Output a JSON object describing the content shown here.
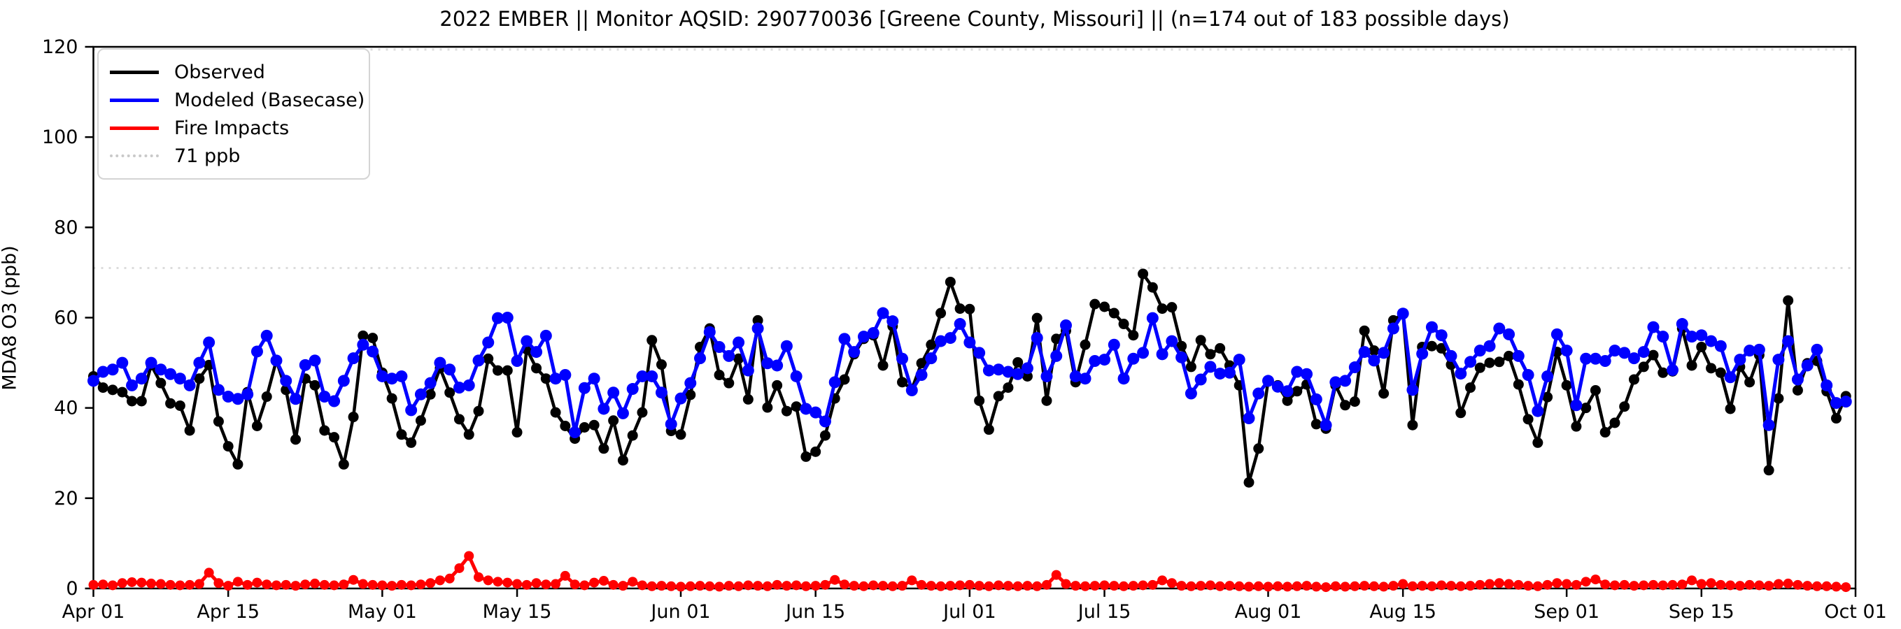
{
  "figure": {
    "title": "2022 EMBER || Monitor AQSID: 290770036 [Greene County, Missouri] || (n=174 out of 183 possible days)",
    "ylabel": "MDA8 O3 (ppb)",
    "background_color": "#ffffff",
    "frame_color": "#000000"
  },
  "legend": {
    "items": [
      {
        "label": "Observed",
        "color": "#000000",
        "style": "solid"
      },
      {
        "label": "Modeled (Basecase)",
        "color": "#0000ff",
        "style": "solid"
      },
      {
        "label": "Fire Impacts",
        "color": "#ff0000",
        "style": "solid"
      },
      {
        "label": "71 ppb",
        "color": "#dcdcdc",
        "style": "dotted"
      }
    ]
  },
  "chart_data": {
    "type": "line",
    "title": "2022 EMBER || Monitor AQSID: 290770036 [Greene County, Missouri] || (n=174 out of 183 possible days)",
    "xlabel": "",
    "ylabel": "MDA8 O3 (ppb)",
    "ylim": [
      0,
      120
    ],
    "yticks": [
      0,
      20,
      40,
      60,
      80,
      100,
      120
    ],
    "x_start_date": "2022-04-01",
    "x_end_date": "2022-10-01",
    "n_days": 183,
    "n_observed_days": 174,
    "xtick_labels": [
      "Apr 01",
      "Apr 15",
      "May 01",
      "May 15",
      "Jun 01",
      "Jun 15",
      "Jul 01",
      "Jul 15",
      "Aug 01",
      "Aug 15",
      "Sep 01",
      "Sep 15",
      "Oct 01"
    ],
    "xtick_day_offsets": [
      0,
      14,
      30,
      44,
      61,
      75,
      91,
      105,
      122,
      136,
      153,
      167,
      183
    ],
    "grid": false,
    "legend_position": "upper left",
    "threshold_lines": [
      {
        "label": "71 ppb",
        "value": 71,
        "color": "#dcdcdc",
        "style": "dotted"
      },
      {
        "label": "",
        "value": 119.4,
        "color": "#dcdcdc",
        "style": "dotted"
      }
    ],
    "series": [
      {
        "name": "Observed",
        "color": "#000000",
        "marker": "circle",
        "values": [
          47.0,
          44.5,
          44.0,
          43.5,
          41.5,
          41.5,
          49.5,
          45.5,
          41.0,
          40.5,
          35.0,
          46.5,
          49.5,
          37.0,
          31.5,
          27.5,
          43.5,
          36.0,
          42.5,
          50.5,
          44.0,
          33.0,
          46.5,
          45.0,
          35.0,
          33.5,
          27.5,
          38.0,
          56.0,
          55.5,
          47.8,
          42.1,
          34.1,
          32.3,
          37.2,
          43.0,
          48.8,
          43.4,
          37.5,
          34.1,
          39.3,
          50.9,
          48.3,
          48.3,
          34.6,
          53.0,
          48.8,
          46.5,
          39.0,
          36.0,
          33.2,
          35.7,
          36.2,
          31.0,
          37.2,
          28.4,
          33.9,
          39.0,
          55.0,
          49.6,
          34.9,
          34.1,
          42.9,
          53.5,
          57.6,
          47.3,
          45.5,
          50.9,
          41.9,
          59.4,
          40.1,
          45.0,
          39.3,
          40.3,
          29.2,
          30.3,
          33.9,
          42.1,
          46.3,
          51.9,
          55.3,
          56.1,
          49.4,
          58.1,
          45.7,
          44.2,
          49.9,
          54.0,
          61.0,
          67.9,
          62.0,
          61.9,
          41.6,
          35.2,
          42.6,
          44.5,
          50.1,
          47.0,
          59.9,
          41.6,
          55.3,
          57.1,
          45.7,
          54.0,
          63.0,
          62.4,
          61.0,
          58.6,
          56.1,
          69.7,
          66.7,
          62.0,
          62.3,
          53.7,
          49.1,
          55.0,
          51.9,
          53.2,
          49.4,
          45.0,
          23.5,
          31.0,
          46.0,
          45.0,
          41.6,
          43.7,
          45.2,
          36.4,
          35.4,
          45.0,
          40.6,
          41.4,
          57.1,
          52.7,
          43.2,
          59.4,
          60.9,
          36.2,
          53.5,
          53.7,
          53.2,
          49.6,
          38.9,
          44.5,
          48.9,
          50.0,
          50.2,
          51.5,
          45.2,
          37.5,
          32.3,
          42.4,
          52.4,
          45.0,
          35.9,
          40.0,
          43.9,
          34.6,
          36.7,
          40.3,
          46.3,
          49.1,
          51.7,
          47.8,
          48.1,
          57.6,
          49.4,
          53.5,
          48.8,
          47.8,
          39.8,
          49.1,
          45.7,
          51.7,
          26.2,
          42.1,
          63.8,
          43.9,
          49.9,
          50.4,
          43.7,
          37.7,
          42.6
        ]
      },
      {
        "name": "Modeled (Basecase)",
        "color": "#0000ff",
        "marker": "circle",
        "values": [
          46.0,
          48.0,
          48.5,
          50.0,
          45.0,
          46.5,
          50.0,
          48.5,
          47.5,
          46.5,
          45.0,
          50.0,
          54.5,
          44.0,
          42.5,
          42.0,
          43.0,
          52.5,
          56.0,
          50.5,
          46.0,
          42.0,
          49.5,
          50.5,
          42.5,
          41.5,
          46.0,
          51.0,
          54.0,
          52.5,
          47.0,
          46.5,
          47.0,
          39.5,
          43.0,
          45.5,
          50.0,
          48.5,
          44.5,
          45.0,
          50.5,
          54.5,
          59.9,
          60.0,
          50.4,
          54.8,
          52.4,
          56.0,
          46.5,
          47.3,
          34.6,
          44.4,
          46.5,
          39.8,
          43.4,
          38.8,
          44.2,
          47.0,
          47.0,
          43.4,
          36.4,
          42.1,
          45.5,
          51.0,
          56.8,
          53.5,
          51.5,
          54.5,
          48.3,
          57.6,
          49.9,
          49.4,
          53.7,
          47.0,
          39.8,
          39.0,
          37.0,
          45.7,
          55.3,
          52.4,
          55.8,
          56.6,
          61.0,
          59.2,
          50.9,
          43.9,
          47.3,
          51.0,
          54.8,
          55.5,
          58.6,
          54.5,
          52.2,
          48.3,
          48.5,
          48.0,
          47.5,
          48.8,
          55.5,
          47.0,
          51.5,
          58.3,
          47.0,
          46.5,
          50.4,
          50.7,
          54.0,
          46.5,
          50.9,
          52.2,
          59.9,
          51.9,
          54.8,
          51.2,
          43.2,
          46.3,
          49.1,
          47.6,
          47.8,
          50.7,
          37.7,
          43.2,
          46.0,
          44.7,
          43.7,
          48.0,
          47.5,
          41.9,
          36.2,
          45.7,
          46.0,
          49.0,
          52.4,
          50.5,
          52.2,
          57.6,
          60.9,
          44.0,
          52.0,
          57.9,
          56.1,
          51.5,
          47.6,
          50.2,
          52.7,
          53.7,
          57.6,
          56.3,
          51.5,
          47.3,
          39.3,
          47.0,
          56.3,
          52.7,
          40.6,
          50.9,
          50.9,
          50.4,
          52.7,
          52.2,
          51.0,
          52.4,
          57.9,
          55.8,
          48.4,
          58.6,
          55.8,
          56.1,
          54.8,
          53.7,
          46.8,
          50.7,
          52.7,
          52.9,
          36.2,
          50.7,
          54.8,
          46.3,
          49.4,
          52.9,
          45.0,
          41.1,
          41.4
        ]
      },
      {
        "name": "Fire Impacts",
        "color": "#ff0000",
        "marker": "circle",
        "values": [
          0.8,
          0.9,
          0.7,
          1.2,
          1.4,
          1.3,
          1.1,
          1.0,
          0.8,
          0.7,
          0.8,
          1.0,
          3.5,
          1.2,
          0.6,
          1.5,
          0.8,
          1.3,
          0.9,
          0.7,
          0.8,
          0.6,
          0.9,
          1.1,
          0.8,
          0.7,
          0.9,
          1.9,
          1.0,
          0.8,
          0.7,
          0.6,
          0.8,
          0.7,
          0.9,
          1.2,
          1.8,
          2.2,
          4.5,
          7.2,
          2.5,
          1.8,
          1.5,
          1.3,
          1.0,
          0.8,
          1.2,
          0.9,
          1.0,
          2.8,
          0.9,
          0.7,
          1.3,
          1.7,
          0.8,
          0.6,
          1.5,
          0.7,
          0.5,
          0.6,
          0.5,
          0.4,
          0.5,
          0.6,
          0.5,
          0.4,
          0.6,
          0.5,
          0.7,
          0.6,
          0.5,
          0.8,
          0.6,
          0.7,
          0.5,
          0.6,
          0.8,
          1.9,
          0.9,
          0.6,
          0.5,
          0.7,
          0.6,
          0.5,
          0.6,
          1.8,
          0.8,
          0.6,
          0.5,
          0.6,
          0.7,
          0.8,
          0.6,
          0.5,
          0.7,
          0.6,
          0.5,
          0.6,
          0.5,
          0.8,
          3.0,
          1.0,
          0.6,
          0.5,
          0.6,
          0.7,
          0.6,
          0.5,
          0.6,
          0.7,
          0.8,
          1.8,
          1.2,
          0.6,
          0.5,
          0.6,
          0.7,
          0.5,
          0.6,
          0.5,
          0.4,
          0.5,
          0.4,
          0.5,
          0.4,
          0.5,
          0.6,
          0.4,
          0.3,
          0.5,
          0.4,
          0.5,
          0.6,
          0.5,
          0.4,
          0.6,
          1.0,
          0.5,
          0.6,
          0.5,
          0.7,
          0.6,
          0.5,
          0.6,
          0.8,
          1.0,
          1.2,
          1.0,
          0.8,
          0.6,
          0.5,
          0.8,
          1.2,
          1.0,
          0.8,
          1.5,
          2.0,
          0.9,
          0.7,
          0.8,
          0.6,
          0.7,
          0.8,
          0.7,
          0.8,
          0.9,
          1.8,
          1.0,
          1.2,
          0.8,
          0.7,
          0.6,
          0.8,
          0.7,
          0.6,
          1.0,
          1.1,
          0.8,
          0.6,
          0.5,
          0.5,
          0.4,
          0.3
        ]
      }
    ]
  }
}
